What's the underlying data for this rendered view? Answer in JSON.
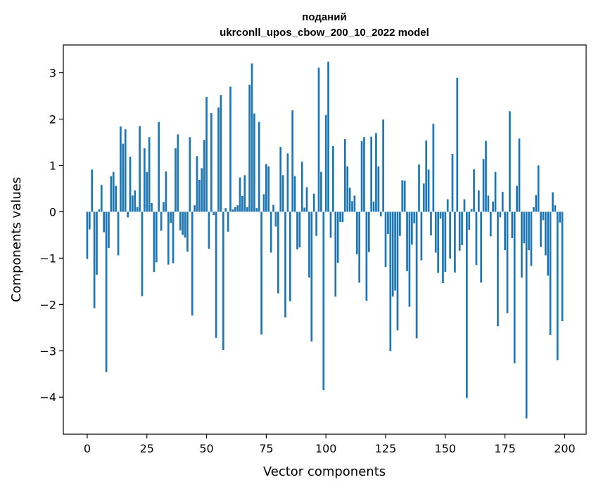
{
  "chart_data": {
    "type": "bar",
    "title_line1": "поданий",
    "title_line2": "ukrconll_upos_cbow_200_10_2022 model",
    "xlabel": "Vector components",
    "ylabel": "Components values",
    "xlim": [
      -10,
      209
    ],
    "ylim": [
      -4.8,
      3.6
    ],
    "xticks": [
      0,
      25,
      50,
      75,
      100,
      125,
      150,
      175,
      200
    ],
    "xtick_labels": [
      "0",
      "25",
      "50",
      "75",
      "100",
      "125",
      "150",
      "175",
      "200"
    ],
    "yticks": [
      -4,
      -3,
      -2,
      -1,
      0,
      1,
      2,
      3
    ],
    "ytick_labels": [
      "−4",
      "−3",
      "−2",
      "−1",
      "0",
      "1",
      "2",
      "3"
    ],
    "bar_color": "#1f77b4",
    "grid": false,
    "values": [
      -1.02,
      -0.38,
      0.91,
      -2.08,
      -1.36,
      0.05,
      0.58,
      -0.44,
      -3.46,
      -0.78,
      0.77,
      0.86,
      0.56,
      -0.94,
      1.84,
      1.47,
      1.78,
      -0.12,
      1.19,
      0.35,
      0.46,
      0.1,
      1.85,
      -1.82,
      1.37,
      0.86,
      1.61,
      0.19,
      -1.3,
      -1.09,
      1.94,
      -0.41,
      0.21,
      0.87,
      -1.14,
      -0.24,
      -1.11,
      1.37,
      1.67,
      -0.4,
      -0.5,
      -0.56,
      -0.86,
      1.61,
      -2.24,
      0.14,
      1.2,
      0.69,
      0.94,
      1.55,
      2.48,
      -0.8,
      2.13,
      -0.07,
      -2.72,
      2.25,
      2.52,
      -2.98,
      0.08,
      -0.43,
      2.7,
      0.05,
      0.1,
      0.14,
      0.74,
      0.34,
      0.79,
      0.1,
      2.74,
      3.2,
      2.12,
      0.08,
      1.94,
      -2.65,
      0.38,
      1.03,
      0.98,
      -0.88,
      0.15,
      -0.32,
      -1.76,
      1.4,
      0.79,
      -2.28,
      1.26,
      -1.93,
      2.19,
      0.77,
      -0.81,
      -0.77,
      1.08,
      0.09,
      0.53,
      -1.42,
      -2.8,
      0.39,
      -0.52,
      3.11,
      0.86,
      -3.85,
      2.09,
      3.24,
      -0.56,
      1.42,
      -1.83,
      -1.1,
      -0.22,
      -0.22,
      1.57,
      0.98,
      0.52,
      0.23,
      0.35,
      -0.92,
      -1.53,
      1.53,
      1.61,
      -1.92,
      -0.87,
      1.62,
      0.22,
      1.7,
      0.98,
      -0.1,
      1.99,
      -1.19,
      -0.48,
      -3.01,
      -1.83,
      -1.7,
      -2.56,
      -0.52,
      0.68,
      0.67,
      -1.28,
      -2.05,
      -0.71,
      -0.25,
      -2.73,
      1.02,
      -1.05,
      0.61,
      1.54,
      0.91,
      -0.51,
      1.9,
      -0.88,
      -1.32,
      -0.15,
      -1.54,
      -1.3,
      0.27,
      -1.01,
      1.25,
      -1.31,
      2.89,
      -0.84,
      -0.72,
      0.27,
      -4.02,
      -0.39,
      0.06,
      0.92,
      -1.15,
      0.46,
      -1.53,
      1.14,
      1.53,
      0.35,
      -0.53,
      0.22,
      0.86,
      -2.47,
      -0.12,
      0.43,
      -0.83,
      -2.19,
      2.17,
      -0.57,
      -3.27,
      0.56,
      1.58,
      -1.42,
      -0.68,
      -4.46,
      -0.83,
      -1.17,
      0.1,
      0.36,
      1.0,
      -0.76,
      -0.18,
      -0.94,
      -1.38,
      -2.66,
      0.42,
      0.14,
      -3.2,
      -0.23,
      -2.36
    ]
  }
}
